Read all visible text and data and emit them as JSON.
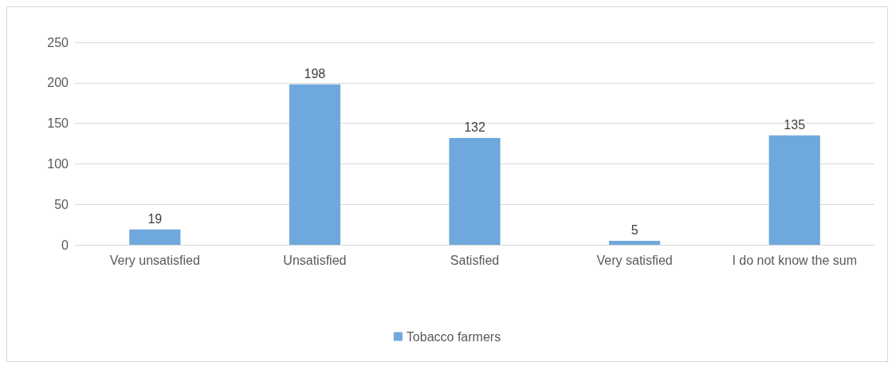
{
  "chart_data": {
    "type": "bar",
    "categories": [
      "Very unsatisfied",
      "Unsatisfied",
      "Satisfied",
      "Very satisfied",
      "I do not know the sum"
    ],
    "series": [
      {
        "name": "Tobacco farmers",
        "color": "#6fa8dc",
        "values": [
          19,
          198,
          132,
          5,
          135
        ]
      }
    ],
    "ylim": [
      0,
      250
    ],
    "yticks": [
      0,
      50,
      100,
      150,
      200,
      250
    ],
    "grid": "y",
    "legend": "bottom",
    "data_labels": true
  }
}
